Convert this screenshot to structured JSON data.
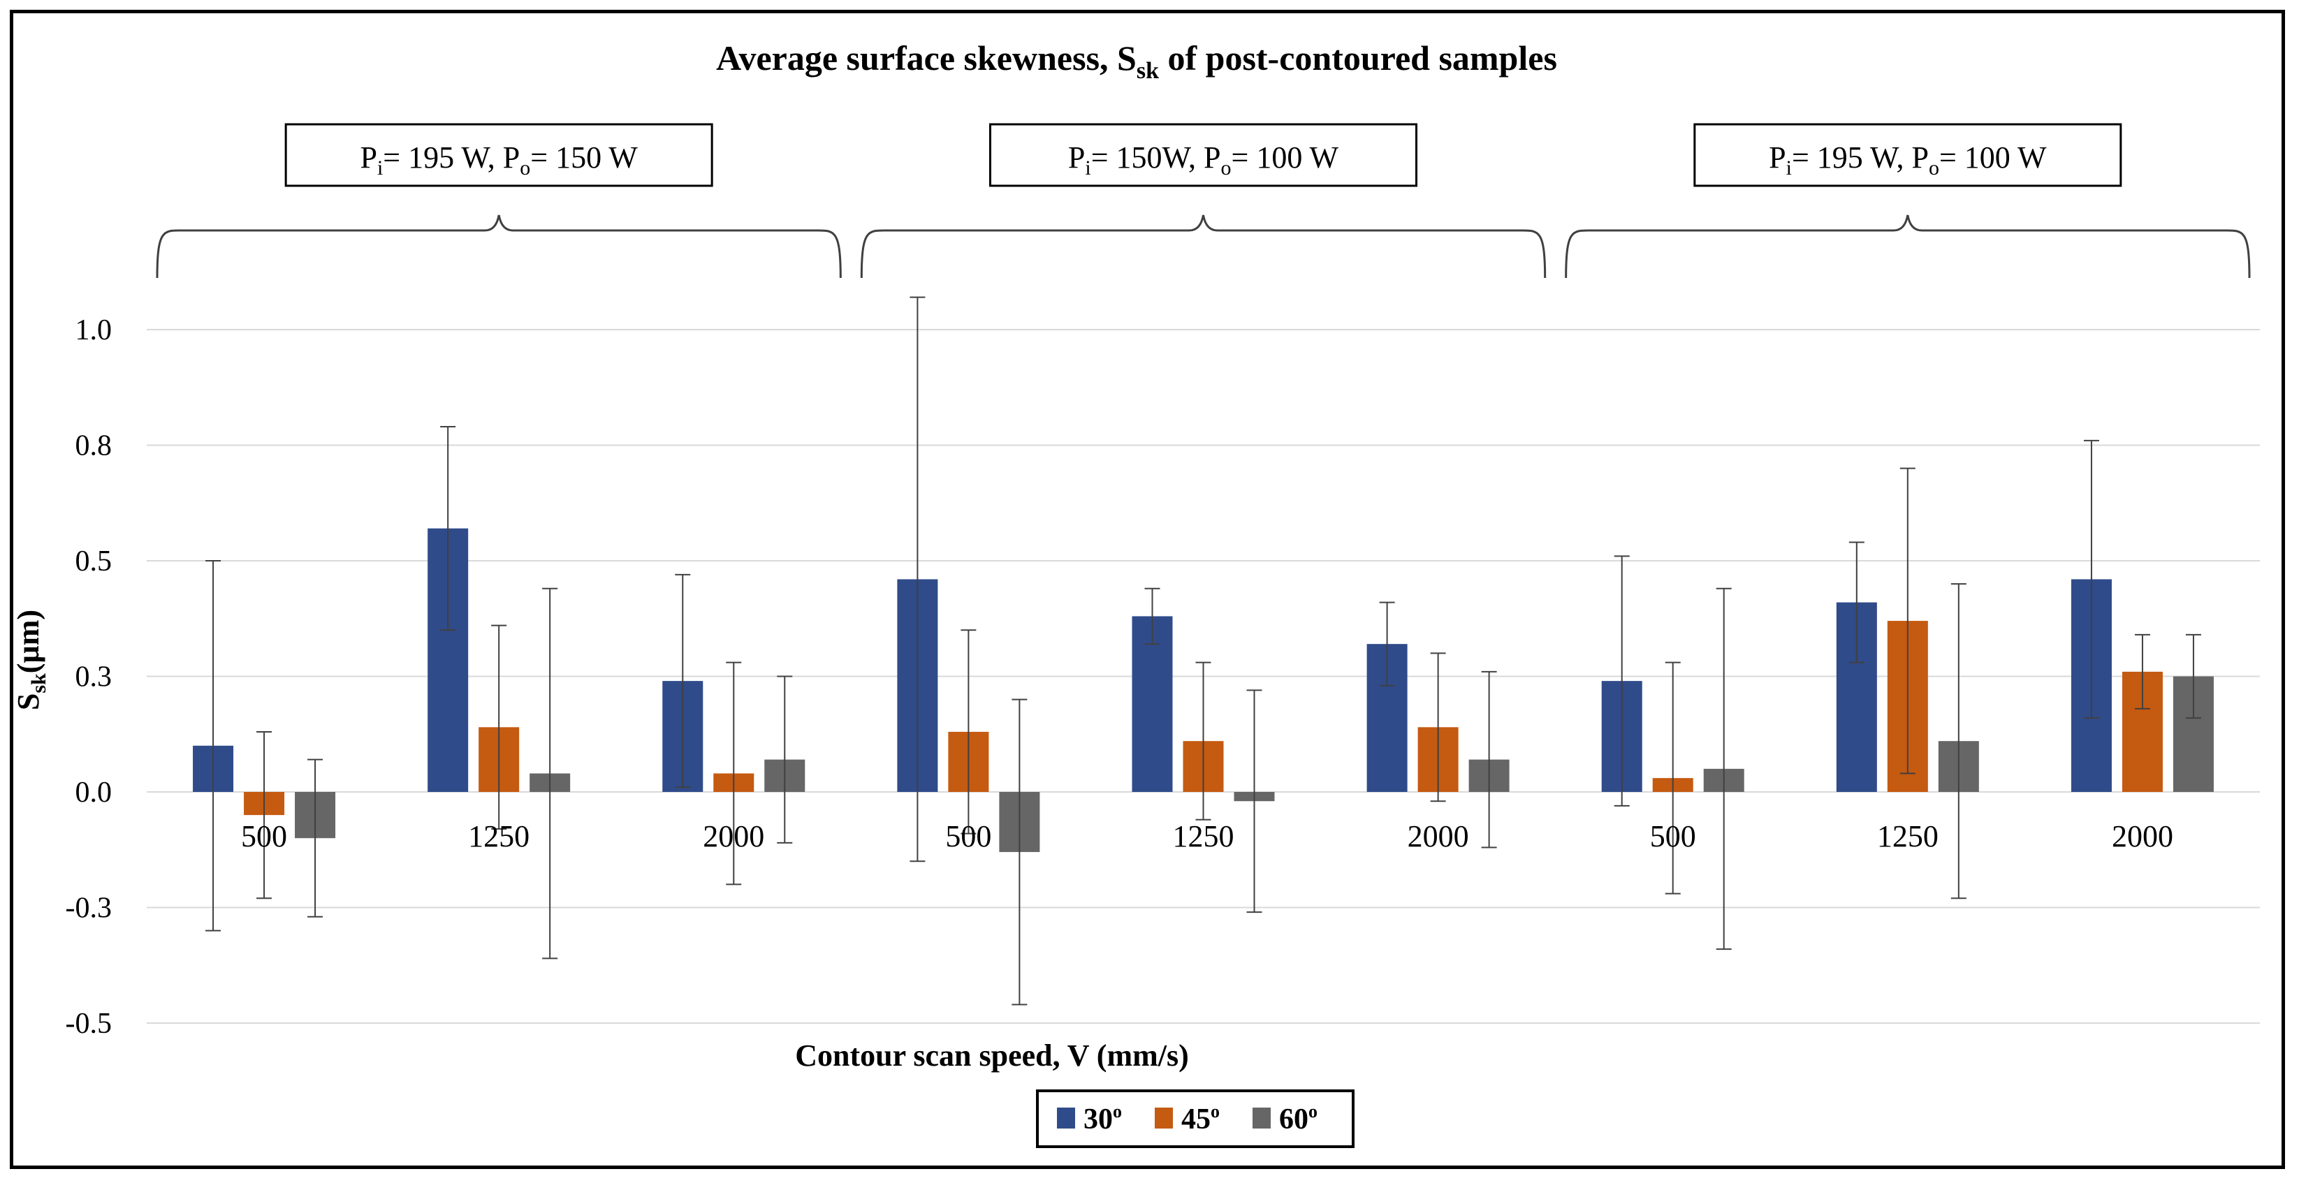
{
  "chart_data": {
    "type": "bar",
    "title": {
      "main": "Average surface skewness, S",
      "sub": "sk",
      "tail": " of post-contoured samples"
    },
    "xlabel": "Contour scan speed, V (mm/s)",
    "ylabel": {
      "main": "S",
      "sub": "sk",
      "tail": "(µm)"
    },
    "ylim": [
      -0.5,
      1.0
    ],
    "yticks": [
      {
        "value": 1.0,
        "label": "1.0"
      },
      {
        "value": 0.75,
        "label": "0.8"
      },
      {
        "value": 0.5,
        "label": "0.5"
      },
      {
        "value": 0.25,
        "label": "0.3"
      },
      {
        "value": 0.0,
        "label": "0.0"
      },
      {
        "value": -0.25,
        "label": "-0.3"
      },
      {
        "value": -0.5,
        "label": "-0.5"
      }
    ],
    "grid": true,
    "legend_position": "bottom-center",
    "groups": [
      {
        "label_parts": [
          {
            "t": "P"
          },
          {
            "t": "i",
            "sub": true
          },
          {
            "t": "= 195 W, P"
          },
          {
            "t": "o",
            "sub": true
          },
          {
            "t": "= 150 W"
          }
        ],
        "categories": [
          "500",
          "1250",
          "2000"
        ]
      },
      {
        "label_parts": [
          {
            "t": "P"
          },
          {
            "t": "i",
            "sub": true
          },
          {
            "t": "= 150W, P"
          },
          {
            "t": "o",
            "sub": true
          },
          {
            "t": "= 100 W"
          }
        ],
        "categories": [
          "500",
          "1250",
          "2000"
        ]
      },
      {
        "label_parts": [
          {
            "t": "P"
          },
          {
            "t": "i",
            "sub": true
          },
          {
            "t": "= 195 W, P"
          },
          {
            "t": "o",
            "sub": true
          },
          {
            "t": "= 100 W"
          }
        ],
        "categories": [
          "500",
          "1250",
          "2000"
        ]
      }
    ],
    "series": [
      {
        "name": "30",
        "name_sup": "o",
        "color": "#2f4b8a",
        "values": [
          0.1,
          0.57,
          0.24,
          0.46,
          0.38,
          0.32,
          0.24,
          0.41,
          0.46
        ],
        "errors": [
          0.4,
          0.22,
          0.23,
          0.61,
          0.06,
          0.09,
          0.27,
          0.13,
          0.3
        ]
      },
      {
        "name": "45",
        "name_sup": "o",
        "color": "#c55a11",
        "values": [
          -0.05,
          0.14,
          0.04,
          0.13,
          0.11,
          0.14,
          0.03,
          0.37,
          0.26
        ],
        "errors": [
          0.18,
          0.22,
          0.24,
          0.22,
          0.17,
          0.16,
          0.25,
          0.33,
          0.08
        ]
      },
      {
        "name": "60",
        "name_sup": "o",
        "color": "#666666",
        "values": [
          -0.1,
          0.04,
          0.07,
          -0.13,
          -0.02,
          0.07,
          0.05,
          0.11,
          0.25
        ],
        "errors": [
          0.17,
          0.4,
          0.18,
          0.33,
          0.24,
          0.19,
          0.39,
          0.34,
          0.09
        ]
      }
    ]
  }
}
